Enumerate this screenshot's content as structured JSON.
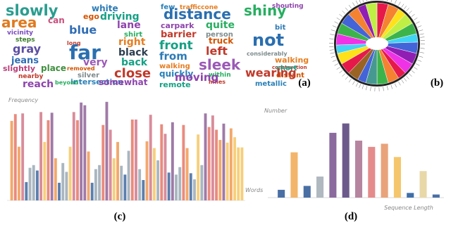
{
  "chart_data": [
    {
      "type": "wordcloud",
      "label": "(a)",
      "words": [
        "slowly",
        "area",
        "can",
        "vicinity",
        "steps",
        "gray",
        "jeans",
        "slightly",
        "place",
        "nearby",
        "reach",
        "white",
        "ego",
        "driving",
        "blue",
        "lane",
        "shirt",
        "long",
        "far",
        "right",
        "black",
        "very",
        "removed",
        "back",
        "close",
        "silver",
        "intersection",
        "somewhat",
        "beyond",
        "few",
        "trafficcone",
        "distance",
        "carpark",
        "barrier",
        "quite",
        "truck",
        "person",
        "front",
        "left",
        "from",
        "sleek",
        "walking",
        "within",
        "quickly",
        "miles",
        "moving",
        "remote",
        "shiny",
        "shouting",
        "bit",
        "not",
        "considerably",
        "walking",
        "construction",
        "short",
        "distant",
        "wearing",
        "metallic"
      ]
    },
    {
      "type": "pie",
      "label": "(b)",
      "values": [
        4,
        4,
        3,
        4,
        4,
        3,
        4,
        4,
        4,
        3,
        4,
        4,
        4,
        3,
        4,
        4,
        4,
        3,
        4,
        4,
        4,
        4,
        3,
        4
      ],
      "colors": [
        "#e6194b",
        "#f58231",
        "#ffe119",
        "#bfef45",
        "#3cb44b",
        "#42d4f4",
        "#4363d8",
        "#911eb4",
        "#f032e6",
        "#e6194b",
        "#f58231",
        "#3cb44b",
        "#469990",
        "#4363d8",
        "#9a6324",
        "#e6194b",
        "#ffe119",
        "#42d4f4",
        "#f032e6",
        "#3cb44b",
        "#4363d8",
        "#f58231",
        "#911eb4",
        "#bfef45"
      ]
    },
    {
      "type": "bar",
      "label": "(c)",
      "ylabel": "Frequency",
      "xlabel": "Words",
      "ylim": [
        0,
        150
      ],
      "values": [
        117,
        127,
        79,
        128,
        27,
        48,
        52,
        44,
        130,
        86,
        118,
        129,
        62,
        26,
        55,
        42,
        79,
        130,
        118,
        144,
        140,
        72,
        26,
        46,
        52,
        111,
        145,
        104,
        62,
        86,
        51,
        38,
        73,
        119,
        119,
        46,
        30,
        87,
        126,
        77,
        59,
        112,
        98,
        41,
        115,
        38,
        49,
        111,
        77,
        40,
        31,
        97,
        52,
        128,
        108,
        125,
        104,
        89,
        113,
        85,
        106,
        93,
        78,
        78
      ],
      "colors": [
        "#f3a86b",
        "#e98b7d",
        "#f3a86b",
        "#d98c9b",
        "#5b7fae",
        "#a9b6c0",
        "#a9b6c0",
        "#5b7fae",
        "#d98c9b",
        "#f7cf7a",
        "#e98b7d",
        "#a07aa8",
        "#f3a86b",
        "#5b7fae",
        "#a9b6c0",
        "#a9b6c0",
        "#f7cf7a",
        "#d98c9b",
        "#e98b7d",
        "#a07aa8",
        "#a07aa8",
        "#f3a86b",
        "#5b7fae",
        "#a9b6c0",
        "#a9b6c0",
        "#e98b7d",
        "#a07aa8",
        "#d98c9b",
        "#f7cf7a",
        "#f3a86b",
        "#a9b6c0",
        "#5b7fae",
        "#a9b6c0",
        "#e98b7d",
        "#d98c9b",
        "#a9b6c0",
        "#5b7fae",
        "#f3a86b",
        "#d98c9b",
        "#f7cf7a",
        "#a9b6c0",
        "#e98b7d",
        "#d98c9b",
        "#5b7fae",
        "#a07aa8",
        "#a9b6c0",
        "#a9b6c0",
        "#e98b7d",
        "#f3a86b",
        "#5b7fae",
        "#a9b6c0",
        "#f7cf7a",
        "#a9b6c0",
        "#a07aa8",
        "#e98b7d",
        "#d98c9b",
        "#e98b7d",
        "#f3a86b",
        "#a07aa8",
        "#f7cf7a",
        "#f3a86b",
        "#f7cf7a",
        "#f7cf7a",
        "#f7cf7a"
      ]
    },
    {
      "type": "bar",
      "label": "(d)",
      "ylabel": "Number",
      "xlabel": "Sequence Length",
      "ylim": [
        0,
        100
      ],
      "values": [
        10,
        58,
        15,
        27,
        83,
        95,
        73,
        65,
        69,
        52,
        6,
        34,
        4
      ],
      "colors": [
        "#4a6fa5",
        "#f2b56b",
        "#4a6fa5",
        "#b0b8c0",
        "#8b6a9e",
        "#6d5a8c",
        "#b784a0",
        "#e58b8b",
        "#e8a37a",
        "#f5c66b",
        "#3f6fa8",
        "#e8d8a8",
        "#4a6fa5"
      ]
    }
  ]
}
